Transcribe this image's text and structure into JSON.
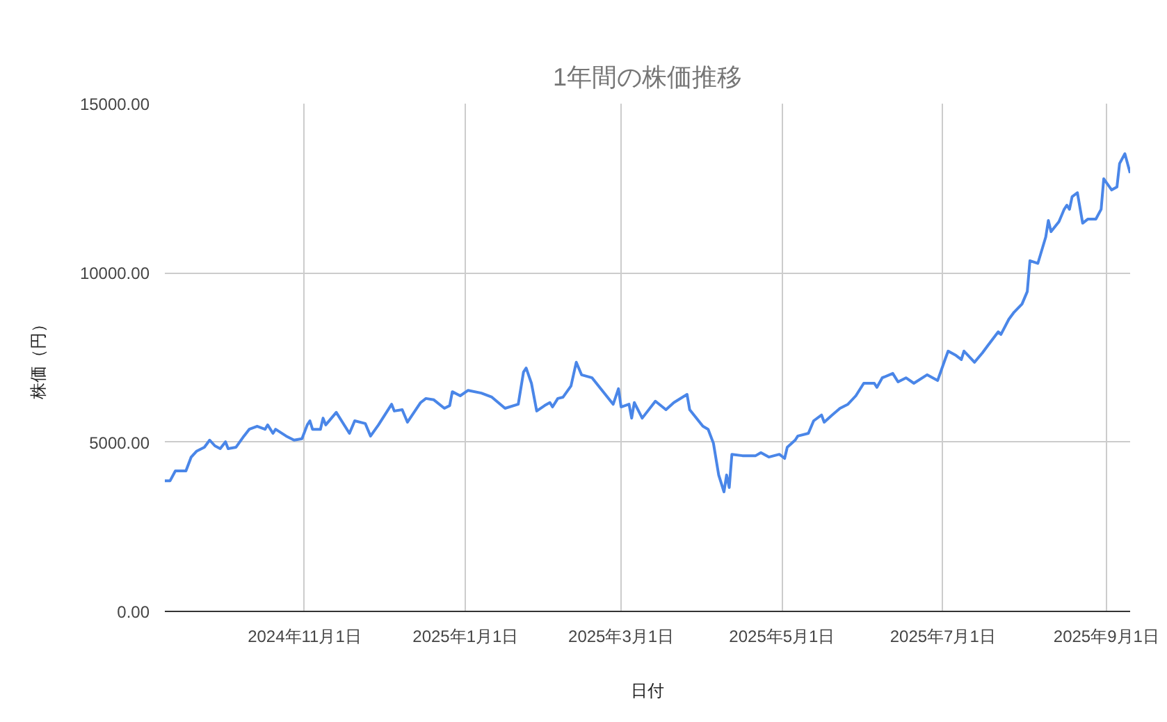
{
  "chart_data": {
    "type": "line",
    "title": "1年間の株価推移",
    "xlabel": "日付",
    "ylabel": "株価（円）",
    "x": [
      "2024-09-09",
      "2024-09-11",
      "2024-09-13",
      "2024-09-17",
      "2024-09-19",
      "2024-09-21",
      "2024-09-24",
      "2024-09-26",
      "2024-09-28",
      "2024-09-30",
      "2024-10-02",
      "2024-10-03",
      "2024-10-06",
      "2024-10-09",
      "2024-10-11",
      "2024-10-14",
      "2024-10-17",
      "2024-10-18",
      "2024-10-20",
      "2024-10-21",
      "2024-10-25",
      "2024-10-28",
      "2024-10-31",
      "2024-11-02",
      "2024-11-03",
      "2024-11-04",
      "2024-11-07",
      "2024-11-08",
      "2024-11-09",
      "2024-11-13",
      "2024-11-18",
      "2024-11-20",
      "2024-11-24",
      "2024-11-26",
      "2024-11-29",
      "2024-12-04",
      "2024-12-05",
      "2024-12-08",
      "2024-12-10",
      "2024-12-15",
      "2024-12-17",
      "2024-12-20",
      "2024-12-24",
      "2024-12-26",
      "2024-12-27",
      "2024-12-30",
      "2025-01-02",
      "2025-01-07",
      "2025-01-11",
      "2025-01-16",
      "2025-01-21",
      "2025-01-23",
      "2025-01-24",
      "2025-01-26",
      "2025-01-28",
      "2025-01-31",
      "2025-02-02",
      "2025-02-03",
      "2025-02-05",
      "2025-02-07",
      "2025-02-10",
      "2025-02-12",
      "2025-02-14",
      "2025-02-18",
      "2025-02-26",
      "2025-02-28",
      "2025-03-01",
      "2025-03-04",
      "2025-03-05",
      "2025-03-06",
      "2025-03-09",
      "2025-03-14",
      "2025-03-18",
      "2025-03-21",
      "2025-03-26",
      "2025-03-27",
      "2025-04-01",
      "2025-04-03",
      "2025-04-05",
      "2025-04-07",
      "2025-04-09",
      "2025-04-10",
      "2025-04-11",
      "2025-04-12",
      "2025-04-16",
      "2025-04-21",
      "2025-04-23",
      "2025-04-26",
      "2025-04-30",
      "2025-05-02",
      "2025-05-03",
      "2025-05-06",
      "2025-05-07",
      "2025-05-11",
      "2025-05-13",
      "2025-05-16",
      "2025-05-17",
      "2025-05-20",
      "2025-05-23",
      "2025-05-26",
      "2025-05-29",
      "2025-06-01",
      "2025-06-05",
      "2025-06-06",
      "2025-06-08",
      "2025-06-12",
      "2025-06-14",
      "2025-06-17",
      "2025-06-20",
      "2025-06-25",
      "2025-06-29",
      "2025-07-02",
      "2025-07-03",
      "2025-07-06",
      "2025-07-08",
      "2025-07-09",
      "2025-07-13",
      "2025-07-16",
      "2025-07-18",
      "2025-07-22",
      "2025-07-23",
      "2025-07-26",
      "2025-07-28",
      "2025-07-31",
      "2025-08-02",
      "2025-08-03",
      "2025-08-06",
      "2025-08-09",
      "2025-08-10",
      "2025-08-11",
      "2025-08-14",
      "2025-08-16",
      "2025-08-17",
      "2025-08-18",
      "2025-08-19",
      "2025-08-21",
      "2025-08-23",
      "2025-08-25",
      "2025-08-28",
      "2025-08-30",
      "2025-08-31",
      "2025-09-03",
      "2025-09-05",
      "2025-09-06",
      "2025-09-08",
      "2025-09-10"
    ],
    "series": [
      {
        "color": "#4a86e8",
        "values": [
          3860,
          3860,
          4150,
          4150,
          4560,
          4730,
          4850,
          5060,
          4890,
          4810,
          5010,
          4810,
          4850,
          5180,
          5380,
          5470,
          5380,
          5510,
          5260,
          5380,
          5180,
          5060,
          5100,
          5510,
          5630,
          5380,
          5380,
          5710,
          5510,
          5880,
          5260,
          5630,
          5550,
          5180,
          5510,
          6120,
          5920,
          5960,
          5590,
          6170,
          6290,
          6250,
          6000,
          6080,
          6490,
          6370,
          6530,
          6450,
          6330,
          6000,
          6120,
          7070,
          7190,
          6740,
          5920,
          6080,
          6170,
          6040,
          6290,
          6330,
          6660,
          7360,
          6990,
          6900,
          6120,
          6580,
          6040,
          6120,
          5710,
          6170,
          5710,
          6210,
          5960,
          6170,
          6410,
          5960,
          5470,
          5380,
          4970,
          4030,
          3530,
          4030,
          3660,
          4640,
          4600,
          4600,
          4690,
          4560,
          4640,
          4520,
          4850,
          5060,
          5180,
          5260,
          5630,
          5800,
          5590,
          5800,
          6000,
          6120,
          6370,
          6740,
          6740,
          6620,
          6900,
          7030,
          6780,
          6900,
          6740,
          6990,
          6820,
          7480,
          7690,
          7560,
          7440,
          7690,
          7360,
          7640,
          7850,
          8260,
          8180,
          8630,
          8840,
          9080,
          9450,
          10360,
          10280,
          11060,
          11550,
          11220,
          11510,
          11880,
          12000,
          11880,
          12250,
          12370,
          11470,
          11590,
          11590,
          11880,
          12780,
          12450,
          12540,
          13230,
          13520,
          12950
        ]
      }
    ],
    "xlim": [
      "2024-09-09",
      "2025-09-10"
    ],
    "xticks": [
      {
        "value": "2024-11-01",
        "label": "2024年11月1日"
      },
      {
        "value": "2025-01-01",
        "label": "2025年1月1日"
      },
      {
        "value": "2025-03-01",
        "label": "2025年3月1日"
      },
      {
        "value": "2025-05-01",
        "label": "2025年5月1日"
      },
      {
        "value": "2025-07-01",
        "label": "2025年7月1日"
      },
      {
        "value": "2025-09-01",
        "label": "2025年9月1日"
      }
    ],
    "ylim": [
      0,
      15000
    ],
    "yticks": [
      {
        "value": 0,
        "label": "0.00"
      },
      {
        "value": 5000,
        "label": "5000.00"
      },
      {
        "value": 10000,
        "label": "10000.00"
      },
      {
        "value": 15000,
        "label": "15000.00"
      }
    ],
    "grid": true,
    "marker": "none",
    "line_style": "solid"
  }
}
